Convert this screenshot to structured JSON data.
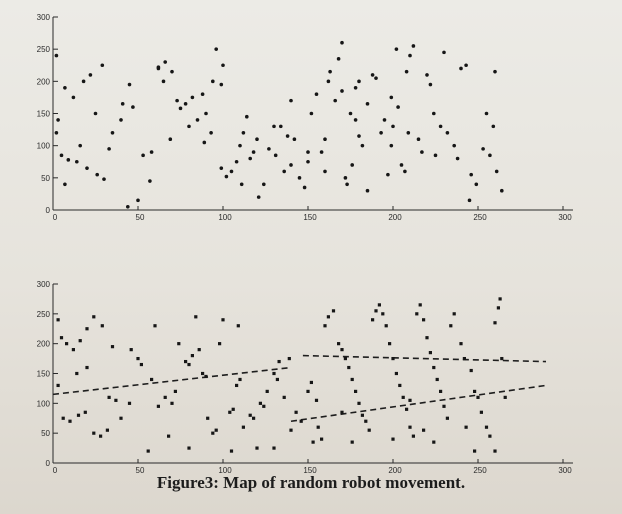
{
  "caption": "Figure3: Map of random robot movement.",
  "chart_data": [
    {
      "type": "scatter",
      "title": "",
      "xlabel": "",
      "ylabel": "",
      "xlim": [
        0,
        300
      ],
      "ylim": [
        0,
        300
      ],
      "x_ticks": [
        "0",
        "50",
        "100",
        "150",
        "200",
        "250",
        "300"
      ],
      "y_ticks": [
        "0",
        "50",
        "100",
        "150",
        "200",
        "250",
        "300"
      ],
      "series": [
        {
          "marker": "dot",
          "points": [
            [
              2,
              240
            ],
            [
              7,
              190
            ],
            [
              12,
              175
            ],
            [
              18,
              200
            ],
            [
              22,
              210
            ],
            [
              29,
              225
            ],
            [
              3,
              140
            ],
            [
              5,
              85
            ],
            [
              9,
              78
            ],
            [
              14,
              75
            ],
            [
              20,
              65
            ],
            [
              26,
              55
            ],
            [
              30,
              48
            ],
            [
              7,
              40
            ],
            [
              2,
              120
            ],
            [
              35,
              120
            ],
            [
              40,
              140
            ],
            [
              41,
              165
            ],
            [
              45,
              195
            ],
            [
              44,
              5
            ],
            [
              50,
              15
            ],
            [
              53,
              85
            ],
            [
              58,
              90
            ],
            [
              62,
              220
            ],
            [
              62,
              222
            ],
            [
              66,
              230
            ],
            [
              65,
              200
            ],
            [
              70,
              215
            ],
            [
              73,
              170
            ],
            [
              75,
              158
            ],
            [
              78,
              165
            ],
            [
              80,
              130
            ],
            [
              82,
              175
            ],
            [
              85,
              140
            ],
            [
              88,
              180
            ],
            [
              90,
              150
            ],
            [
              93,
              120
            ],
            [
              94,
              200
            ],
            [
              96,
              250
            ],
            [
              99,
              195
            ],
            [
              100,
              225
            ],
            [
              102,
              52
            ],
            [
              105,
              60
            ],
            [
              108,
              75
            ],
            [
              110,
              100
            ],
            [
              112,
              120
            ],
            [
              114,
              145
            ],
            [
              116,
              80
            ],
            [
              118,
              90
            ],
            [
              120,
              110
            ],
            [
              121,
              20
            ],
            [
              124,
              40
            ],
            [
              127,
              95
            ],
            [
              131,
              85
            ],
            [
              134,
              130
            ],
            [
              136,
              60
            ],
            [
              138,
              115
            ],
            [
              140,
              170
            ],
            [
              142,
              110
            ],
            [
              145,
              50
            ],
            [
              148,
              35
            ],
            [
              150,
              75
            ],
            [
              152,
              150
            ],
            [
              155,
              180
            ],
            [
              158,
              90
            ],
            [
              160,
              110
            ],
            [
              162,
              200
            ],
            [
              163,
              215
            ],
            [
              166,
              170
            ],
            [
              168,
              235
            ],
            [
              170,
              260
            ],
            [
              172,
              50
            ],
            [
              173,
              40
            ],
            [
              175,
              150
            ],
            [
              176,
              70
            ],
            [
              178,
              140
            ],
            [
              180,
              115
            ],
            [
              182,
              100
            ],
            [
              185,
              30
            ],
            [
              188,
              210
            ],
            [
              190,
              205
            ],
            [
              193,
              120
            ],
            [
              195,
              140
            ],
            [
              197,
              55
            ],
            [
              199,
              100
            ],
            [
              200,
              130
            ],
            [
              202,
              250
            ],
            [
              205,
              70
            ],
            [
              208,
              215
            ],
            [
              210,
              240
            ],
            [
              212,
              255
            ],
            [
              215,
              110
            ],
            [
              217,
              90
            ],
            [
              220,
              210
            ],
            [
              222,
              195
            ],
            [
              224,
              150
            ],
            [
              228,
              130
            ],
            [
              230,
              245
            ],
            [
              232,
              120
            ],
            [
              236,
              100
            ],
            [
              238,
              80
            ],
            [
              240,
              220
            ],
            [
              243,
              225
            ],
            [
              246,
              55
            ],
            [
              249,
              40
            ],
            [
              253,
              95
            ],
            [
              255,
              150
            ],
            [
              257,
              85
            ],
            [
              259,
              130
            ],
            [
              260,
              215
            ],
            [
              261,
              60
            ],
            [
              264,
              30
            ],
            [
              178,
              190
            ],
            [
              180,
              200
            ],
            [
              170,
              185
            ],
            [
              160,
              60
            ],
            [
              150,
              90
            ],
            [
              140,
              70
            ],
            [
              130,
              130
            ],
            [
              111,
              40
            ],
            [
              99,
              65
            ],
            [
              89,
              105
            ],
            [
              69,
              110
            ],
            [
              57,
              45
            ],
            [
              47,
              160
            ],
            [
              33,
              95
            ],
            [
              25,
              150
            ],
            [
              16,
              100
            ],
            [
              199,
              175
            ],
            [
              203,
              160
            ],
            [
              207,
              60
            ],
            [
              209,
              120
            ],
            [
              185,
              165
            ],
            [
              225,
              85
            ],
            [
              245,
              15
            ]
          ]
        }
      ]
    },
    {
      "type": "scatter",
      "title": "",
      "xlabel": "",
      "ylabel": "",
      "xlim": [
        0,
        300
      ],
      "ylim": [
        0,
        300
      ],
      "x_ticks": [
        "0",
        "50",
        "100",
        "150",
        "200",
        "250",
        "300"
      ],
      "y_ticks": [
        "0",
        "50",
        "100",
        "150",
        "200",
        "250",
        "300"
      ],
      "series": [
        {
          "marker": "square",
          "points": [
            [
              3,
              240
            ],
            [
              5,
              210
            ],
            [
              8,
              200
            ],
            [
              12,
              190
            ],
            [
              16,
              205
            ],
            [
              20,
              225
            ],
            [
              24,
              245
            ],
            [
              29,
              230
            ],
            [
              33,
              110
            ],
            [
              37,
              105
            ],
            [
              40,
              75
            ],
            [
              14,
              150
            ],
            [
              20,
              160
            ],
            [
              3,
              130
            ],
            [
              6,
              75
            ],
            [
              10,
              70
            ],
            [
              15,
              80
            ],
            [
              19,
              85
            ],
            [
              24,
              50
            ],
            [
              28,
              45
            ],
            [
              32,
              55
            ],
            [
              46,
              190
            ],
            [
              50,
              175
            ],
            [
              52,
              165
            ],
            [
              58,
              140
            ],
            [
              62,
              95
            ],
            [
              66,
              110
            ],
            [
              68,
              45
            ],
            [
              70,
              100
            ],
            [
              72,
              120
            ],
            [
              74,
              200
            ],
            [
              78,
              170
            ],
            [
              80,
              165
            ],
            [
              82,
              180
            ],
            [
              86,
              190
            ],
            [
              88,
              150
            ],
            [
              90,
              145
            ],
            [
              91,
              75
            ],
            [
              94,
              50
            ],
            [
              96,
              55
            ],
            [
              98,
              200
            ],
            [
              100,
              240
            ],
            [
              104,
              85
            ],
            [
              106,
              90
            ],
            [
              108,
              130
            ],
            [
              110,
              140
            ],
            [
              112,
              60
            ],
            [
              116,
              80
            ],
            [
              118,
              75
            ],
            [
              120,
              25
            ],
            [
              122,
              100
            ],
            [
              124,
              95
            ],
            [
              126,
              120
            ],
            [
              130,
              150
            ],
            [
              132,
              140
            ],
            [
              136,
              110
            ],
            [
              139,
              175
            ],
            [
              140,
              55
            ],
            [
              143,
              85
            ],
            [
              146,
              70
            ],
            [
              150,
              120
            ],
            [
              152,
              135
            ],
            [
              155,
              105
            ],
            [
              158,
              40
            ],
            [
              160,
              230
            ],
            [
              162,
              245
            ],
            [
              165,
              255
            ],
            [
              168,
              200
            ],
            [
              170,
              190
            ],
            [
              172,
              175
            ],
            [
              174,
              160
            ],
            [
              176,
              140
            ],
            [
              178,
              120
            ],
            [
              180,
              100
            ],
            [
              182,
              80
            ],
            [
              184,
              70
            ],
            [
              186,
              55
            ],
            [
              188,
              240
            ],
            [
              190,
              255
            ],
            [
              192,
              265
            ],
            [
              194,
              250
            ],
            [
              196,
              230
            ],
            [
              198,
              200
            ],
            [
              200,
              175
            ],
            [
              202,
              150
            ],
            [
              204,
              130
            ],
            [
              206,
              110
            ],
            [
              208,
              90
            ],
            [
              210,
              60
            ],
            [
              212,
              45
            ],
            [
              214,
              250
            ],
            [
              216,
              265
            ],
            [
              218,
              240
            ],
            [
              220,
              210
            ],
            [
              222,
              185
            ],
            [
              224,
              160
            ],
            [
              226,
              140
            ],
            [
              228,
              120
            ],
            [
              230,
              95
            ],
            [
              232,
              75
            ],
            [
              234,
              230
            ],
            [
              236,
              250
            ],
            [
              240,
              200
            ],
            [
              242,
              175
            ],
            [
              246,
              155
            ],
            [
              248,
              120
            ],
            [
              250,
              110
            ],
            [
              252,
              85
            ],
            [
              255,
              60
            ],
            [
              257,
              45
            ],
            [
              260,
              235
            ],
            [
              262,
              260
            ],
            [
              263,
              275
            ],
            [
              264,
              175
            ],
            [
              266,
              110
            ],
            [
              260,
              20
            ],
            [
              248,
              20
            ],
            [
              224,
              35
            ],
            [
              200,
              40
            ],
            [
              176,
              35
            ],
            [
              153,
              35
            ],
            [
              130,
              25
            ],
            [
              105,
              20
            ],
            [
              80,
              25
            ],
            [
              56,
              20
            ],
            [
              45,
              100
            ],
            [
              35,
              195
            ],
            [
              60,
              230
            ],
            [
              84,
              245
            ],
            [
              109,
              230
            ],
            [
              133,
              170
            ],
            [
              156,
              60
            ],
            [
              170,
              85
            ],
            [
              210,
              105
            ],
            [
              218,
              55
            ],
            [
              243,
              60
            ]
          ]
        }
      ],
      "trend_lines": [
        {
          "style": "dashed",
          "points": [
            [
              0,
              115
            ],
            [
              140,
              160
            ]
          ]
        },
        {
          "style": "dashed",
          "points": [
            [
              147,
              180
            ],
            [
              290,
              170
            ]
          ]
        },
        {
          "style": "dashed",
          "points": [
            [
              140,
              70
            ],
            [
              290,
              130
            ]
          ]
        }
      ]
    }
  ]
}
